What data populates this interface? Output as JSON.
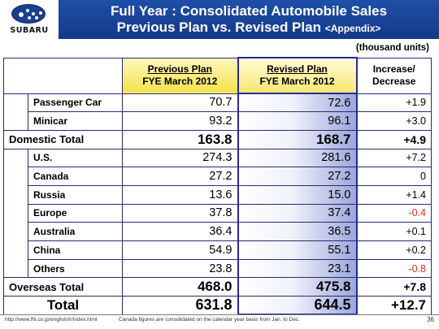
{
  "header": {
    "logo_text": "SUBARU",
    "title_line1": "Full Year : Consolidated Automobile Sales",
    "title_line2": "Previous Plan vs. Revised Plan",
    "title_suffix": "<Appendix>"
  },
  "units": "(thousand units)",
  "columns": {
    "prev_line1": "Previous Plan",
    "prev_line2": "FYE March 2012",
    "rev_line1": "Revised Plan",
    "rev_line2": "FYE March 2012",
    "inc_line1": "Increase/",
    "inc_line2": "Decrease"
  },
  "domestic": {
    "rows": [
      {
        "label": "Passenger Car",
        "prev": "70.7",
        "rev": "72.6",
        "inc": "+1.9"
      },
      {
        "label": "Minicar",
        "prev": "93.2",
        "rev": "96.1",
        "inc": "+3.0"
      }
    ],
    "total": {
      "label": "Domestic Total",
      "prev": "163.8",
      "rev": "168.7",
      "inc": "+4.9"
    }
  },
  "overseas": {
    "rows": [
      {
        "label": "U.S.",
        "prev": "274.3",
        "rev": "281.6",
        "inc": "+7.2"
      },
      {
        "label": "Canada",
        "prev": "27.2",
        "rev": "27.2",
        "inc": "0"
      },
      {
        "label": "Russia",
        "prev": "13.6",
        "rev": "15.0",
        "inc": "+1.4"
      },
      {
        "label": "Europe",
        "prev": "37.8",
        "rev": "37.4",
        "inc": "-0.4"
      },
      {
        "label": "Australia",
        "prev": "36.4",
        "rev": "36.5",
        "inc": "+0.1"
      },
      {
        "label": "China",
        "prev": "54.9",
        "rev": "55.1",
        "inc": "+0.2"
      },
      {
        "label": "Others",
        "prev": "23.8",
        "rev": "23.1",
        "inc": "-0.8"
      }
    ],
    "total": {
      "label": "Overseas Total",
      "prev": "468.0",
      "rev": "475.8",
      "inc": "+7.8"
    }
  },
  "grand_total": {
    "label": "Total",
    "prev": "631.8",
    "rev": "644.5",
    "inc": "+12.7"
  },
  "footer": {
    "url": "http://www.fhi.co.jp/english/ir/index.html",
    "note": "Canada figures are consolidated on the calendar year basis from Jan. to Dec.",
    "page": "36"
  },
  "colors": {
    "title_band": "#1e4fa6",
    "header_yellow": "#f3e14a",
    "revised_gradient_end": "#9aa6dc",
    "negative": "#e0281e"
  }
}
